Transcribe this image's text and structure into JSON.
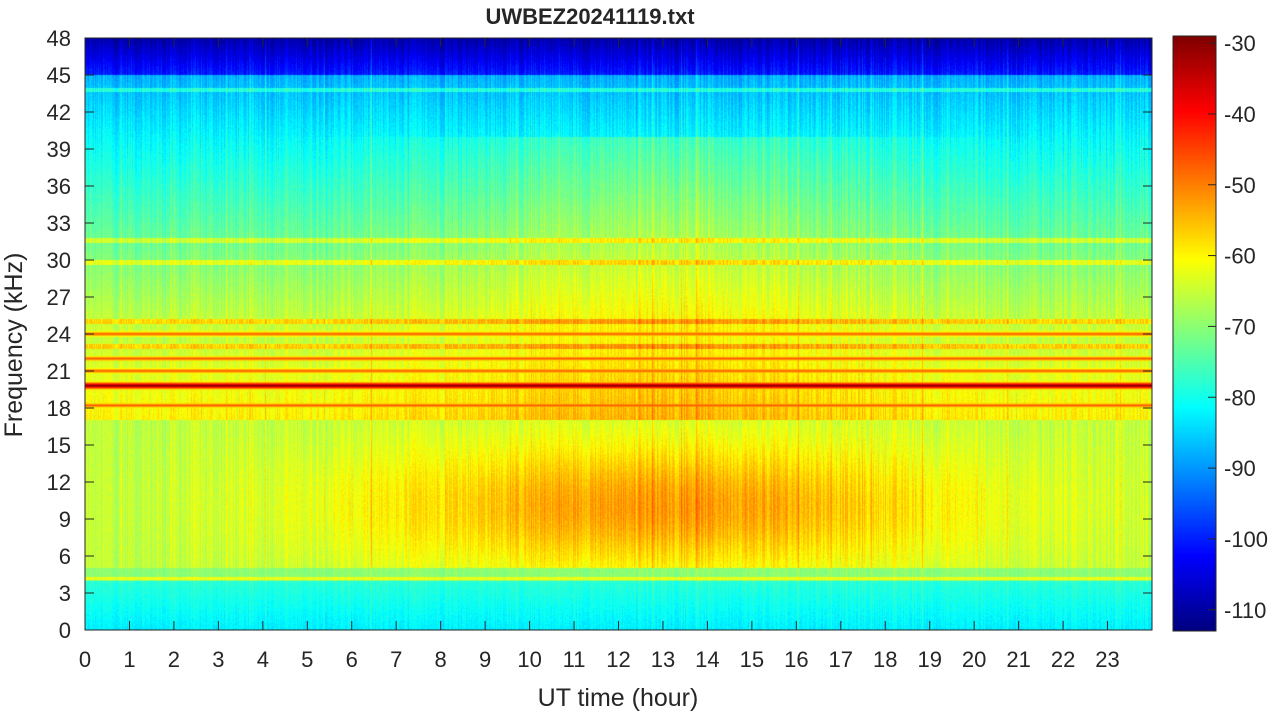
{
  "chart_data": {
    "type": "heatmap",
    "title": "UWBEZ20241119.txt",
    "xlabel": "UT time (hour)",
    "ylabel": "Frequency (kHz)",
    "xlim": [
      0,
      24
    ],
    "ylim": [
      0,
      48
    ],
    "xticks": [
      0,
      1,
      2,
      3,
      4,
      5,
      6,
      7,
      8,
      9,
      10,
      11,
      12,
      13,
      14,
      15,
      16,
      17,
      18,
      19,
      20,
      21,
      22,
      23
    ],
    "yticks": [
      0,
      3,
      6,
      9,
      12,
      15,
      18,
      21,
      24,
      27,
      30,
      33,
      36,
      39,
      42,
      45,
      48
    ],
    "colorbar": {
      "ticks": [
        -30,
        -40,
        -50,
        -60,
        -70,
        -80,
        -90,
        -100,
        -110
      ],
      "range": [
        -113,
        -29
      ],
      "colormap": "jet"
    },
    "features": {
      "strong_lines_khz": [
        19.8,
        18.2,
        24.0,
        21.0,
        22.0
      ],
      "weak_lines_khz": [
        43.8,
        31.6,
        23.0,
        25.0,
        29.8,
        4.1
      ],
      "broadband_peak_level_db": -52,
      "broadband_range_khz": [
        5,
        17
      ],
      "broadband_peak_hours": [
        9,
        17
      ]
    }
  }
}
